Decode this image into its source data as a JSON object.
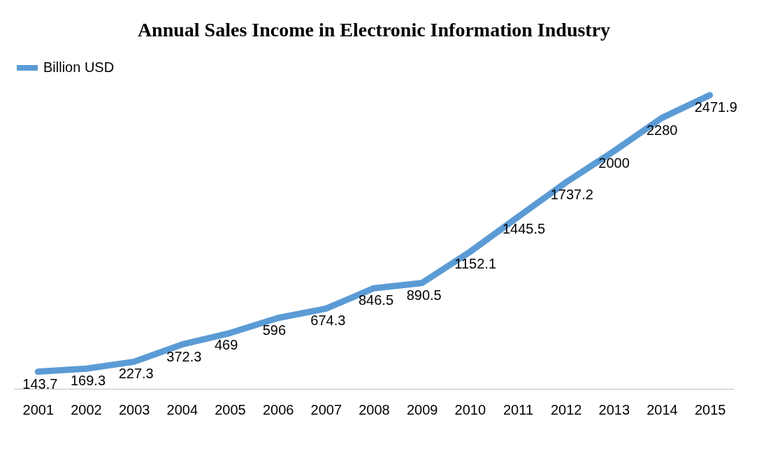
{
  "chart_data": {
    "type": "line",
    "title": "Annual Sales Income in Electronic Information Industry",
    "categories": [
      "2001",
      "2002",
      "2003",
      "2004",
      "2005",
      "2006",
      "2007",
      "2008",
      "2009",
      "2010",
      "2011",
      "2012",
      "2013",
      "2014",
      "2015"
    ],
    "series": [
      {
        "name": "Billion USD",
        "color": "#5b9bd5",
        "values": [
          143.7,
          169.3,
          227.3,
          372.3,
          469,
          596,
          674.3,
          846.5,
          890.5,
          1152.1,
          1445.5,
          1737.2,
          2000,
          2280,
          2471.9
        ]
      }
    ],
    "data_labels": true,
    "legend": "top",
    "grid": false
  }
}
